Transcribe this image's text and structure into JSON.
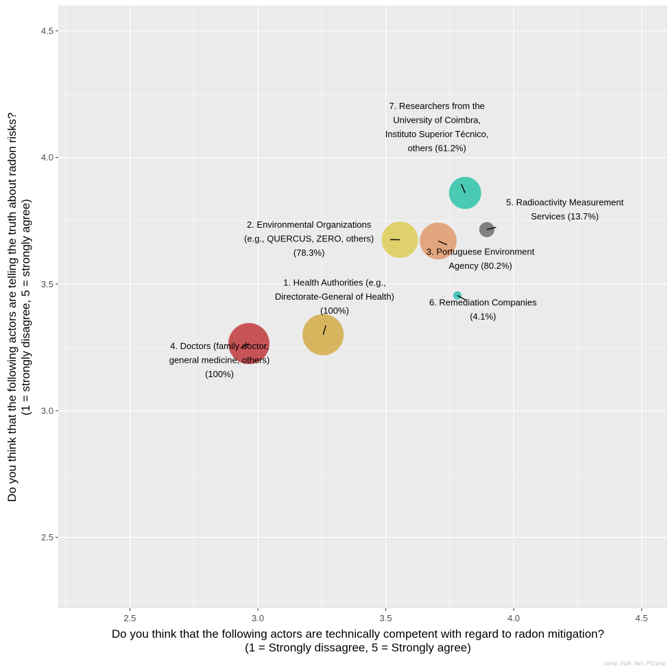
{
  "chart_data": {
    "type": "scatter",
    "subtype": "bubble",
    "title": "",
    "xlabel": [
      "Do you think that the following actors are technically competent with regard to radon mitigation?",
      "(1 = Strongly dissagree, 5 = Strongly agree)"
    ],
    "ylabel": [
      "Do you think that the following actors are telling the truth about radon risks?",
      "(1 = strongly disagree, 5 = strongly agree)"
    ],
    "xlim": [
      2.22,
      4.6
    ],
    "ylim": [
      2.22,
      4.6
    ],
    "xticks": [
      2.5,
      3.0,
      3.5,
      4.0,
      4.5
    ],
    "yticks": [
      2.5,
      3.0,
      3.5,
      4.0,
      4.5
    ],
    "xtick_labels": [
      "2.5",
      "3.0",
      "3.5",
      "4.0",
      "4.5"
    ],
    "ytick_labels": [
      "2.5",
      "3.0",
      "3.5",
      "4.0",
      "4.5"
    ],
    "grid": true,
    "legend": "none",
    "points": [
      {
        "id": 1,
        "label": [
          "1. Health Authorities (e.g.,",
          "Directorate-General of Health)",
          "(100%)"
        ],
        "x": 3.255,
        "y": 3.3,
        "share_pct": 100,
        "color": "#D4AC47",
        "label_x": 3.3,
        "label_y": 3.45,
        "label_align": "middle"
      },
      {
        "id": 2,
        "label": [
          "2. Environmental Organizations",
          "(e.g., QUERCUS, ZERO, others)",
          "(78.3%)"
        ],
        "x": 3.555,
        "y": 3.675,
        "share_pct": 78.3,
        "color": "#DDCC55",
        "label_x": 3.2,
        "label_y": 3.68,
        "label_align": "middle"
      },
      {
        "id": 3,
        "label": [
          "3. Portuguese Environment",
          "Agency (80.2%)"
        ],
        "x": 3.705,
        "y": 3.67,
        "share_pct": 80.2,
        "color": "#E09A6C",
        "label_x": 3.87,
        "label_y": 3.6,
        "label_align": "middle"
      },
      {
        "id": 4,
        "label": [
          "4. Doctors (family doctor,",
          "general medicine, others)",
          "(100%)"
        ],
        "x": 2.965,
        "y": 3.265,
        "share_pct": 100,
        "color": "#C0393D",
        "label_x": 2.85,
        "label_y": 3.2,
        "label_align": "middle"
      },
      {
        "id": 5,
        "label": [
          "5. Radioactivity Measurement",
          "Services (13.7%)"
        ],
        "x": 3.895,
        "y": 3.715,
        "share_pct": 13.7,
        "color": "#6E6E6E",
        "label_x": 4.2,
        "label_y": 3.795,
        "label_align": "middle"
      },
      {
        "id": 6,
        "label": [
          "6. Remediation Companies",
          "(4.1%)"
        ],
        "x": 3.78,
        "y": 3.455,
        "share_pct": 4.1,
        "color": "#33C0B0",
        "label_x": 3.88,
        "label_y": 3.4,
        "label_align": "middle"
      },
      {
        "id": 7,
        "label": [
          "7. Researchers from the",
          "University of Coimbra,",
          "Instituto Superior Técnico,",
          "others (61.2%)"
        ],
        "x": 3.81,
        "y": 3.86,
        "share_pct": 61.2,
        "color": "#2EC4A8",
        "label_x": 3.7,
        "label_y": 4.12,
        "label_align": "middle"
      }
    ],
    "caption": "comp_truth_fam_PO.png"
  }
}
